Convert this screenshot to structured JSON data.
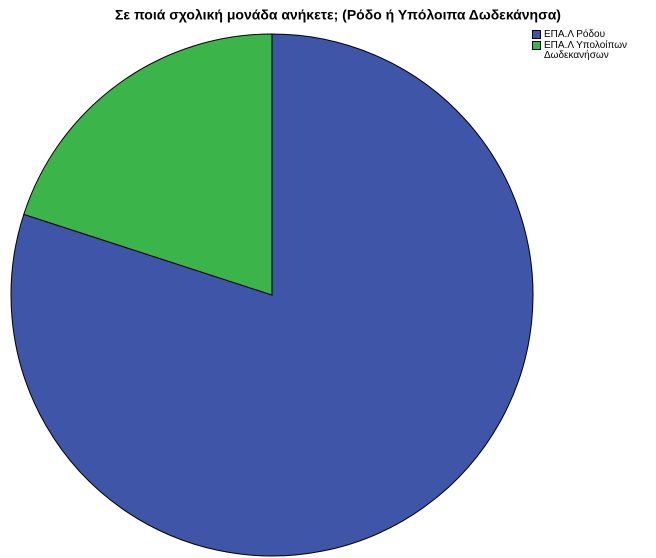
{
  "chart_data": {
    "type": "pie",
    "title": "Σε ποιά σχολική μονάδα ανήκετε; (Ρόδο ή Υπόλοιπα Δωδεκάνησα)",
    "categories": [
      "ΕΠΑ.Λ Ρόδου",
      "ΕΠΑ.Λ Υπολοίπων Δωδεκανήσων"
    ],
    "values": [
      80,
      20
    ],
    "colors": [
      "#3f56a8",
      "#3bb54a"
    ],
    "legend": "top-right"
  }
}
